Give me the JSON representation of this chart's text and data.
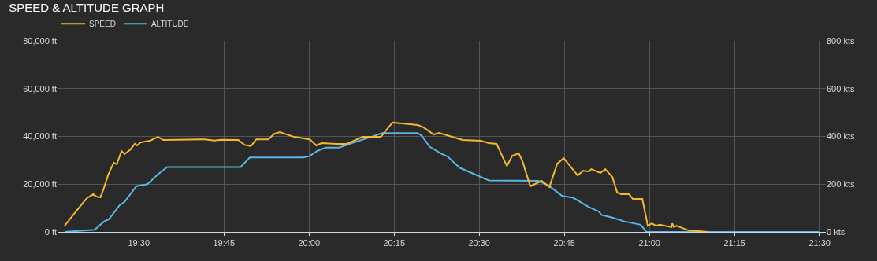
{
  "chart_data": {
    "type": "line",
    "title": "SPEED & ALTITUDE GRAPH",
    "xlim": [
      19.261,
      21.518
    ],
    "xticks": [
      {
        "value": 19.5,
        "label": "19:30"
      },
      {
        "value": 19.75,
        "label": "19:45"
      },
      {
        "value": 20.0,
        "label": "20:00"
      },
      {
        "value": 20.25,
        "label": "20:15"
      },
      {
        "value": 20.5,
        "label": "20:30"
      },
      {
        "value": 20.75,
        "label": "20:45"
      },
      {
        "value": 21.0,
        "label": "21:00"
      },
      {
        "value": 21.25,
        "label": "21:15"
      },
      {
        "value": 21.5,
        "label": "21:30"
      }
    ],
    "ylim": [
      0,
      80000
    ],
    "yticks": [
      {
        "value": 0,
        "label": "0 ft"
      },
      {
        "value": 20000,
        "label": "20,000 ft"
      },
      {
        "value": 40000,
        "label": "40,000 ft"
      },
      {
        "value": 60000,
        "label": "60,000 ft"
      },
      {
        "value": 80000,
        "label": "80,000 ft"
      }
    ],
    "y2lim": [
      0,
      800
    ],
    "y2ticks": [
      {
        "value": 0,
        "label": "0 kts"
      },
      {
        "value": 200,
        "label": "200 kts"
      },
      {
        "value": 400,
        "label": "400 kts"
      },
      {
        "value": 600,
        "label": "600 kts"
      },
      {
        "value": 800,
        "label": "800 kts"
      }
    ],
    "grid": true,
    "legend": "top left",
    "marker": "none",
    "line_style": "solid",
    "series": [
      {
        "name": "SPEED",
        "color": "#f5b82e",
        "axis": "y2",
        "x": [
          19.282,
          19.313,
          19.347,
          19.366,
          19.375,
          19.387,
          19.396,
          19.41,
          19.426,
          19.435,
          19.449,
          19.458,
          19.475,
          19.488,
          19.495,
          19.505,
          19.532,
          19.556,
          19.572,
          19.694,
          19.722,
          19.741,
          19.792,
          19.81,
          19.829,
          19.845,
          19.88,
          19.898,
          19.914,
          19.956,
          20.002,
          20.021,
          20.037,
          20.081,
          20.111,
          20.157,
          20.211,
          20.245,
          20.319,
          20.336,
          20.366,
          20.382,
          20.451,
          20.505,
          20.528,
          20.551,
          20.581,
          20.597,
          20.616,
          20.627,
          20.65,
          20.683,
          20.706,
          20.729,
          20.748,
          20.789,
          20.806,
          20.822,
          20.829,
          20.856,
          20.87,
          20.891,
          20.905,
          20.917,
          20.94,
          20.951,
          20.979,
          20.995,
          21.007,
          21.019,
          21.03,
          21.065,
          21.067,
          21.072,
          21.079,
          21.113,
          21.171
        ],
        "values": [
          26,
          82,
          141,
          158,
          148,
          145,
          178,
          240,
          290,
          283,
          339,
          326,
          345,
          369,
          362,
          375,
          382,
          398,
          385,
          388,
          383,
          386,
          385,
          365,
          359,
          388,
          388,
          411,
          418,
          398,
          388,
          362,
          372,
          369,
          369,
          398,
          398,
          458,
          448,
          438,
          408,
          415,
          385,
          382,
          372,
          369,
          276,
          319,
          329,
          296,
          191,
          214,
          188,
          286,
          309,
          237,
          257,
          253,
          263,
          247,
          263,
          230,
          165,
          158,
          158,
          138,
          138,
          26,
          36,
          26,
          30,
          20,
          36,
          20,
          26,
          7,
          0
        ]
      },
      {
        "name": "ALTITUDE",
        "color": "#5ab4e6",
        "axis": "y",
        "x": [
          19.282,
          19.37,
          19.398,
          19.412,
          19.444,
          19.458,
          19.493,
          19.525,
          19.556,
          19.583,
          19.799,
          19.826,
          19.984,
          20.002,
          20.025,
          20.049,
          20.088,
          20.127,
          20.181,
          20.215,
          20.319,
          20.331,
          20.354,
          20.389,
          20.407,
          20.442,
          20.528,
          20.674,
          20.706,
          20.743,
          20.776,
          20.822,
          20.852,
          20.859,
          20.891,
          20.926,
          20.974,
          20.991,
          21.5
        ],
        "values": [
          0,
          900,
          4400,
          5300,
          11300,
          12600,
          19200,
          20000,
          24100,
          27200,
          27200,
          31200,
          31200,
          31800,
          34000,
          35300,
          35300,
          37300,
          39700,
          41400,
          41400,
          40300,
          35700,
          32700,
          31600,
          26900,
          21600,
          21400,
          19200,
          15100,
          14300,
          10400,
          8500,
          7100,
          6000,
          4400,
          3000,
          0,
          0
        ]
      }
    ]
  }
}
